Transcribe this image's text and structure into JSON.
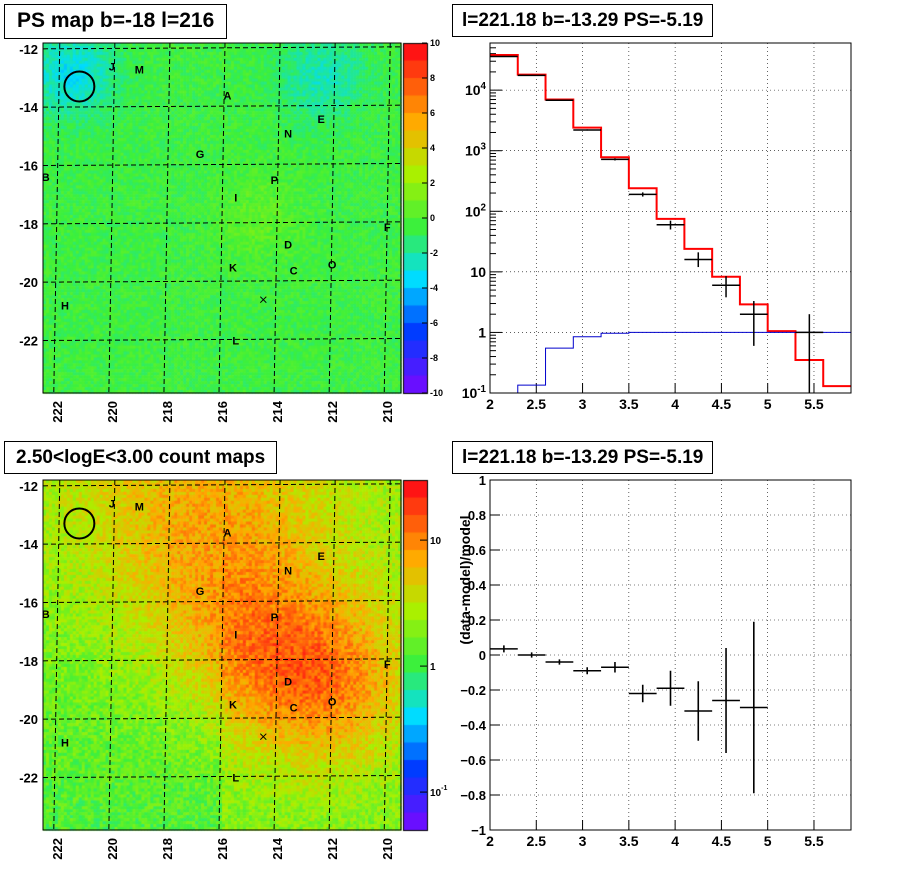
{
  "panels": {
    "top_left_title": "PS map b=-18 l=216",
    "top_right_title": "l=221.18 b=-13.29 PS=-5.19",
    "bottom_left_title": "2.50<logE<3.00 count maps",
    "bottom_right_title": "l=221.18 b=-13.29 PS=-5.19"
  },
  "chart_data": [
    {
      "id": "ps_map",
      "type": "heatmap",
      "title": "PS map b=-18 l=216",
      "xlim": [
        222.5,
        209.5
      ],
      "ylim": [
        -23.8,
        -11.8
      ],
      "x_ticks": [
        "222",
        "220",
        "218",
        "216",
        "214",
        "212",
        "210"
      ],
      "y_ticks": [
        "-12",
        "-14",
        "-16",
        "-18",
        "-20",
        "-22"
      ],
      "colorbar": {
        "min": -10,
        "max": 10,
        "ticks": [
          "10",
          "8",
          "6",
          "4",
          "2",
          "0",
          "-2",
          "-4",
          "-6",
          "-8",
          "-10"
        ]
      },
      "source_labels": [
        {
          "label": "J",
          "l": 220.0,
          "b": -12.6
        },
        {
          "label": "M",
          "l": 219.0,
          "b": -12.7
        },
        {
          "label": "A",
          "l": 215.8,
          "b": -13.6
        },
        {
          "label": "N",
          "l": 213.6,
          "b": -14.9
        },
        {
          "label": "E",
          "l": 212.4,
          "b": -14.4
        },
        {
          "label": "G",
          "l": 216.8,
          "b": -15.6
        },
        {
          "label": "B",
          "l": 222.4,
          "b": -16.4
        },
        {
          "label": "P",
          "l": 214.1,
          "b": -16.5
        },
        {
          "label": "I",
          "l": 215.5,
          "b": -17.1
        },
        {
          "label": "F",
          "l": 210.0,
          "b": -18.1
        },
        {
          "label": "D",
          "l": 213.6,
          "b": -18.7
        },
        {
          "label": "K",
          "l": 215.6,
          "b": -19.5
        },
        {
          "label": "C",
          "l": 213.4,
          "b": -19.6
        },
        {
          "label": "O",
          "l": 212.0,
          "b": -19.4
        },
        {
          "label": "H",
          "l": 221.7,
          "b": -20.8
        },
        {
          "label": "L",
          "l": 215.5,
          "b": -22.0
        }
      ],
      "marked_source": {
        "l": 221.18,
        "b": -13.29
      },
      "cross_marker": {
        "l": 214.5,
        "b": -20.6
      }
    },
    {
      "id": "spectrum",
      "type": "line",
      "title": "l=221.18 b=-13.29 PS=-5.19",
      "xlim": [
        2,
        5.9
      ],
      "ylim": [
        0.1,
        60000
      ],
      "yscale": "log",
      "x_ticks": [
        "2",
        "2.5",
        "3",
        "3.5",
        "4",
        "4.5",
        "5",
        "5.5"
      ],
      "y_ticks": [
        "10^-1",
        "1",
        "10",
        "10^2",
        "10^3",
        "10^4"
      ],
      "grid": true,
      "bin_edges": [
        2.0,
        2.3,
        2.6,
        2.9,
        3.2,
        3.5,
        3.8,
        4.1,
        4.4,
        4.7,
        5.0,
        5.3,
        5.6,
        5.9
      ],
      "series": [
        {
          "name": "",
          "color": "#ff0000",
          "values": [
            38000,
            18000,
            7000,
            2400,
            780,
            240,
            75,
            24,
            8.3,
            2.9,
            1.05,
            0.35,
            0.13
          ]
        },
        {
          "name": "",
          "color": "#0000cc",
          "values": [
            0.1,
            0.135,
            0.55,
            0.85,
            0.97,
            1.0,
            1.0,
            1.0,
            1.0,
            1.0,
            1.0,
            1.0,
            1.0
          ]
        }
      ],
      "data_points": [
        {
          "x": 2.15,
          "y": 36000,
          "xerr": 0.15,
          "ylo": 35500,
          "yhi": 36500
        },
        {
          "x": 2.45,
          "y": 17500,
          "xerr": 0.15,
          "ylo": 17200,
          "yhi": 17800
        },
        {
          "x": 2.75,
          "y": 6800,
          "xerr": 0.15,
          "ylo": 6700,
          "yhi": 6900
        },
        {
          "x": 3.05,
          "y": 2200,
          "xerr": 0.15,
          "ylo": 2150,
          "yhi": 2250
        },
        {
          "x": 3.35,
          "y": 720,
          "xerr": 0.15,
          "ylo": 690,
          "yhi": 750
        },
        {
          "x": 3.65,
          "y": 190,
          "xerr": 0.15,
          "ylo": 175,
          "yhi": 205
        },
        {
          "x": 3.95,
          "y": 60,
          "xerr": 0.15,
          "ylo": 50,
          "yhi": 70
        },
        {
          "x": 4.25,
          "y": 16,
          "xerr": 0.15,
          "ylo": 12,
          "yhi": 21
        },
        {
          "x": 4.55,
          "y": 6,
          "xerr": 0.15,
          "ylo": 3.8,
          "yhi": 8.5
        },
        {
          "x": 4.85,
          "y": 2.0,
          "xerr": 0.15,
          "ylo": 0.6,
          "yhi": 3.3
        },
        {
          "x": 5.45,
          "y": 1.0,
          "xerr": 0.15,
          "ylo": 0.1,
          "yhi": 2.0
        }
      ]
    },
    {
      "id": "count_map",
      "type": "heatmap",
      "title": "2.50<logE<3.00 count maps",
      "xlim": [
        222.5,
        209.5
      ],
      "ylim": [
        -23.8,
        -11.8
      ],
      "x_ticks": [
        "222",
        "220",
        "218",
        "216",
        "214",
        "212",
        "210"
      ],
      "y_ticks": [
        "-12",
        "-14",
        "-16",
        "-18",
        "-20",
        "-22"
      ],
      "colorbar": {
        "scale": "log",
        "min": 0.05,
        "max": 30,
        "ticks": [
          "10",
          "1",
          "10^-1"
        ]
      },
      "source_labels": "same as ps_map",
      "marked_source": {
        "l": 221.18,
        "b": -13.29
      }
    },
    {
      "id": "residuals",
      "type": "scatter",
      "title": "l=221.18 b=-13.29 PS=-5.19",
      "ylabel": "(data-model)/model",
      "xlim": [
        2,
        5.9
      ],
      "ylim": [
        -1,
        1
      ],
      "x_ticks": [
        "2",
        "2.5",
        "3",
        "3.5",
        "4",
        "4.5",
        "5",
        "5.5"
      ],
      "y_ticks": [
        "1",
        "0.8",
        "0.6",
        "0.4",
        "0.2",
        "0",
        "-0.2",
        "-0.4",
        "-0.6",
        "-0.8",
        "-1"
      ],
      "grid": true,
      "points": [
        {
          "x": 2.15,
          "y": 0.035,
          "xerr": 0.15,
          "yerr": 0.02
        },
        {
          "x": 2.45,
          "y": 0.0,
          "xerr": 0.15,
          "yerr": 0.015
        },
        {
          "x": 2.75,
          "y": -0.04,
          "xerr": 0.15,
          "yerr": 0.015
        },
        {
          "x": 3.05,
          "y": -0.09,
          "xerr": 0.15,
          "yerr": 0.02
        },
        {
          "x": 3.35,
          "y": -0.07,
          "xerr": 0.15,
          "yerr": 0.03
        },
        {
          "x": 3.65,
          "y": -0.22,
          "xerr": 0.15,
          "yerr": 0.05
        },
        {
          "x": 3.95,
          "y": -0.19,
          "xerr": 0.15,
          "yerr": 0.1
        },
        {
          "x": 4.25,
          "y": -0.32,
          "xerr": 0.15,
          "yerr": 0.17
        },
        {
          "x": 4.55,
          "y": -0.26,
          "xerr": 0.15,
          "yerr": 0.3
        },
        {
          "x": 4.85,
          "y": -0.3,
          "xerr": 0.15,
          "yerr": 0.49
        }
      ]
    }
  ]
}
